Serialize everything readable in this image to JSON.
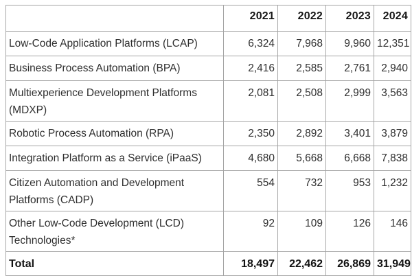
{
  "table": {
    "columns": [
      "",
      "2021",
      "2022",
      "2023",
      "2024"
    ],
    "rows": [
      {
        "label": "Low-Code Application Platforms (LCAP)",
        "values": [
          "6,324",
          "7,968",
          "9,960",
          "12,351"
        ],
        "bold": false
      },
      {
        "label": "Business Process Automation (BPA)",
        "values": [
          "2,416",
          "2,585",
          "2,761",
          "2,940"
        ],
        "bold": false
      },
      {
        "label": "Multiexperience Development Platforms (MDXP)",
        "values": [
          "2,081",
          "2,508",
          "2,999",
          "3,563"
        ],
        "bold": false
      },
      {
        "label": "Robotic Process Automation (RPA)",
        "values": [
          "2,350",
          "2,892",
          "3,401",
          "3,879"
        ],
        "bold": false
      },
      {
        "label": "Integration Platform as a Service (iPaaS)",
        "values": [
          "4,680",
          "5,668",
          "6,668",
          "7,838"
        ],
        "bold": false
      },
      {
        "label": "Citizen Automation and Development Platforms (CADP)",
        "values": [
          "554",
          "732",
          "953",
          "1,232"
        ],
        "bold": false
      },
      {
        "label": "Other Low-Code Development (LCD) Technologies*",
        "values": [
          "92",
          "109",
          "126",
          "146"
        ],
        "bold": false
      },
      {
        "label": "Total",
        "values": [
          "18,497",
          "22,462",
          "26,869",
          "31,949"
        ],
        "bold": true
      }
    ],
    "border_color": "#a4a4a4",
    "text_color": "#2e2e2e",
    "bold_text_color": "#121212",
    "background_color": "#ffffff"
  },
  "chart_data": {
    "type": "table",
    "title": "",
    "categories": [
      "2021",
      "2022",
      "2023",
      "2024"
    ],
    "series": [
      {
        "name": "Low-Code Application Platforms (LCAP)",
        "values": [
          6324,
          7968,
          9960,
          12351
        ]
      },
      {
        "name": "Business Process Automation (BPA)",
        "values": [
          2416,
          2585,
          2761,
          2940
        ]
      },
      {
        "name": "Multiexperience Development Platforms (MDXP)",
        "values": [
          2081,
          2508,
          2999,
          3563
        ]
      },
      {
        "name": "Robotic Process Automation (RPA)",
        "values": [
          2350,
          2892,
          3401,
          3879
        ]
      },
      {
        "name": "Integration Platform as a Service (iPaaS)",
        "values": [
          4680,
          5668,
          6668,
          7838
        ]
      },
      {
        "name": "Citizen Automation and Development Platforms (CADP)",
        "values": [
          554,
          732,
          953,
          1232
        ]
      },
      {
        "name": "Other Low-Code Development (LCD) Technologies*",
        "values": [
          92,
          109,
          126,
          146
        ]
      },
      {
        "name": "Total",
        "values": [
          18497,
          22462,
          26869,
          31949
        ]
      }
    ],
    "legend_position": "none",
    "grid": true
  }
}
